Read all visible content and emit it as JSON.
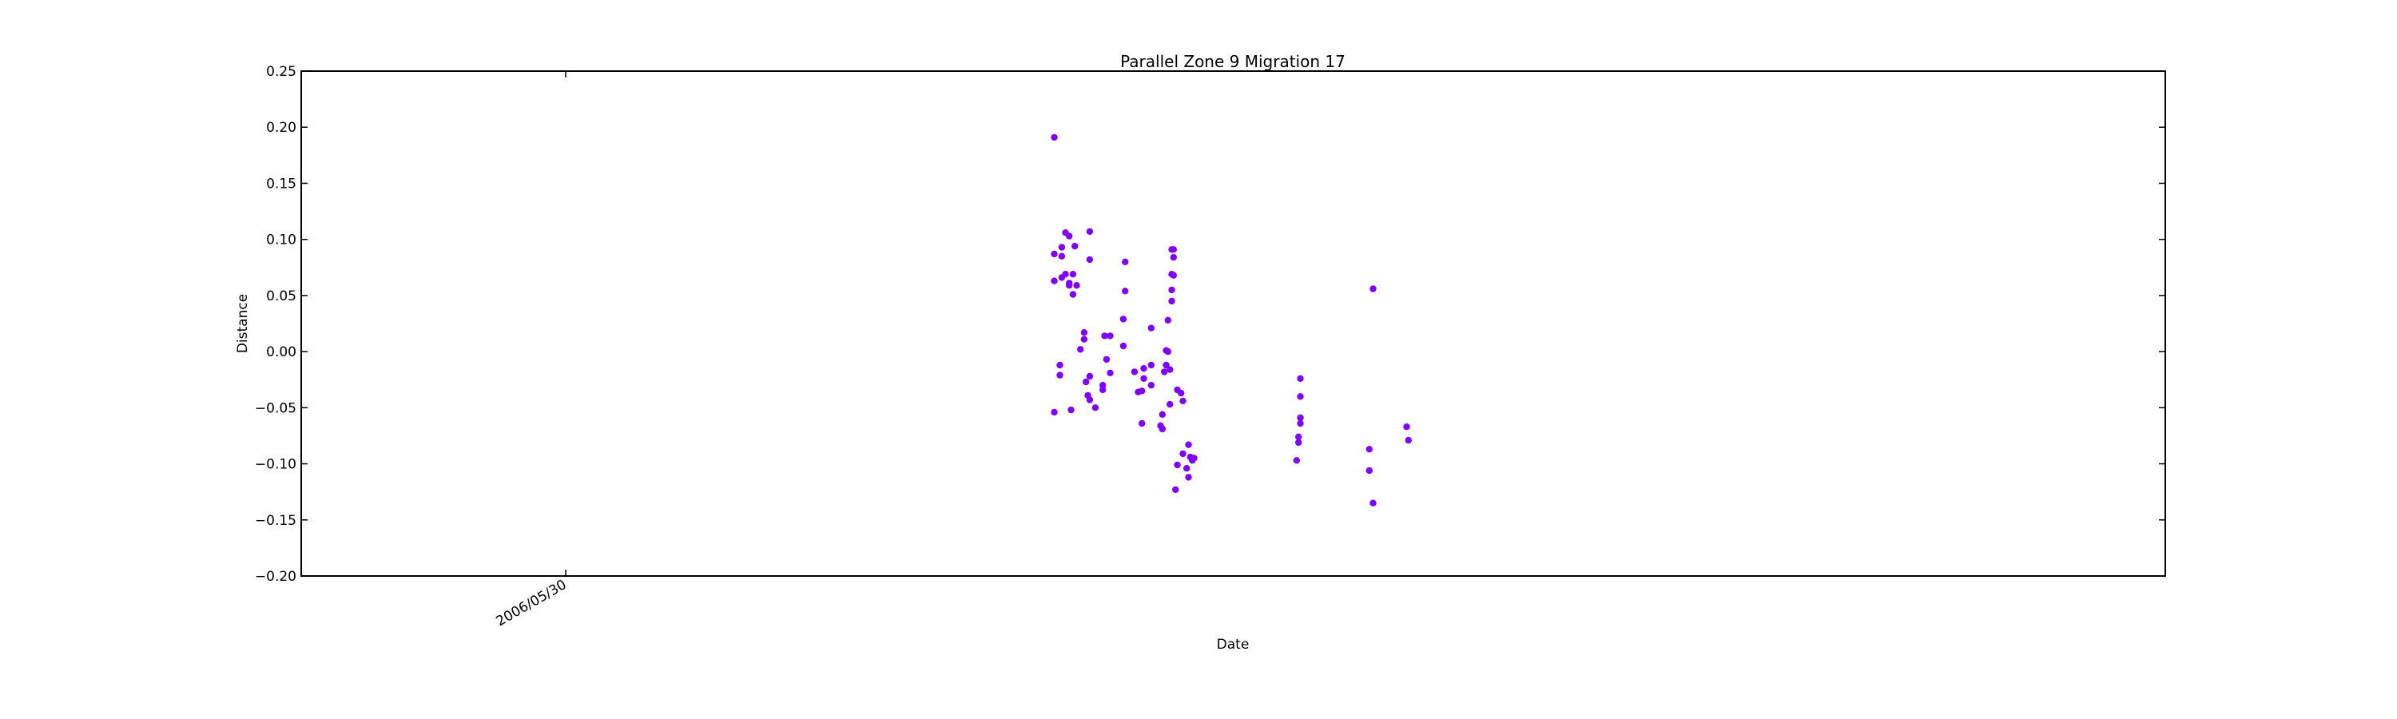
{
  "chart_data": {
    "type": "scatter",
    "title": "Parallel Zone 9 Migration 17",
    "xlabel": "Date",
    "ylabel": "Distance",
    "ylim": [
      -0.2,
      0.25
    ],
    "y_ticks": [
      -0.2,
      -0.15,
      -0.1,
      -0.05,
      0.0,
      0.05,
      0.1,
      0.15,
      0.2,
      0.25
    ],
    "y_tick_labels": [
      "−0.20",
      "−0.15",
      "−0.10",
      "−0.05",
      "0.00",
      "0.05",
      "0.10",
      "0.15",
      "0.20",
      "0.25"
    ],
    "x_tick_labels": [
      "2006/05/30"
    ],
    "grid": false,
    "marker_color": "#7f00ff",
    "series": [
      {
        "points": [
          [
            0.404,
            0.191
          ],
          [
            0.404,
            0.087
          ],
          [
            0.404,
            0.063
          ],
          [
            0.404,
            -0.054
          ],
          [
            0.407,
            -0.012
          ],
          [
            0.407,
            -0.021
          ],
          [
            0.408,
            0.093
          ],
          [
            0.408,
            0.085
          ],
          [
            0.408,
            0.066
          ],
          [
            0.41,
            0.106
          ],
          [
            0.41,
            0.069
          ],
          [
            0.412,
            0.103
          ],
          [
            0.412,
            0.061
          ],
          [
            0.412,
            0.059
          ],
          [
            0.413,
            -0.052
          ],
          [
            0.414,
            0.069
          ],
          [
            0.414,
            0.051
          ],
          [
            0.415,
            0.094
          ],
          [
            0.416,
            0.059
          ],
          [
            0.418,
            0.002
          ],
          [
            0.42,
            0.017
          ],
          [
            0.42,
            0.011
          ],
          [
            0.421,
            -0.027
          ],
          [
            0.422,
            -0.039
          ],
          [
            0.423,
            0.107
          ],
          [
            0.423,
            0.082
          ],
          [
            0.423,
            -0.022
          ],
          [
            0.423,
            -0.043
          ],
          [
            0.426,
            -0.05
          ],
          [
            0.43,
            -0.03
          ],
          [
            0.43,
            -0.034
          ],
          [
            0.431,
            0.014
          ],
          [
            0.432,
            -0.007
          ],
          [
            0.434,
            0.014
          ],
          [
            0.434,
            -0.019
          ],
          [
            0.441,
            0.029
          ],
          [
            0.441,
            0.005
          ],
          [
            0.442,
            0.08
          ],
          [
            0.442,
            0.054
          ],
          [
            0.447,
            -0.018
          ],
          [
            0.449,
            -0.036
          ],
          [
            0.451,
            -0.035
          ],
          [
            0.451,
            -0.064
          ],
          [
            0.452,
            -0.015
          ],
          [
            0.452,
            -0.024
          ],
          [
            0.456,
            0.021
          ],
          [
            0.456,
            -0.012
          ],
          [
            0.456,
            -0.03
          ],
          [
            0.461,
            -0.066
          ],
          [
            0.462,
            -0.056
          ],
          [
            0.462,
            -0.069
          ],
          [
            0.463,
            -0.018
          ],
          [
            0.464,
            -0.012
          ],
          [
            0.464,
            0.001
          ],
          [
            0.465,
            0.028
          ],
          [
            0.465,
            0.0
          ],
          [
            0.466,
            -0.047
          ],
          [
            0.466,
            -0.016
          ],
          [
            0.467,
            0.091
          ],
          [
            0.467,
            0.069
          ],
          [
            0.467,
            0.055
          ],
          [
            0.467,
            0.045
          ],
          [
            0.468,
            0.091
          ],
          [
            0.468,
            0.084
          ],
          [
            0.468,
            0.068
          ],
          [
            0.469,
            -0.123
          ],
          [
            0.47,
            -0.034
          ],
          [
            0.47,
            -0.101
          ],
          [
            0.472,
            -0.037
          ],
          [
            0.473,
            -0.044
          ],
          [
            0.473,
            -0.091
          ],
          [
            0.475,
            -0.104
          ],
          [
            0.476,
            -0.112
          ],
          [
            0.476,
            -0.083
          ],
          [
            0.477,
            -0.094
          ],
          [
            0.478,
            -0.097
          ],
          [
            0.479,
            -0.095
          ],
          [
            0.534,
            -0.097
          ],
          [
            0.535,
            -0.076
          ],
          [
            0.535,
            -0.081
          ],
          [
            0.536,
            -0.024
          ],
          [
            0.536,
            -0.04
          ],
          [
            0.536,
            -0.059
          ],
          [
            0.536,
            -0.064
          ],
          [
            0.573,
            -0.087
          ],
          [
            0.573,
            -0.106
          ],
          [
            0.575,
            0.056
          ],
          [
            0.575,
            -0.135
          ],
          [
            0.593,
            -0.067
          ],
          [
            0.594,
            -0.079
          ]
        ]
      }
    ]
  }
}
